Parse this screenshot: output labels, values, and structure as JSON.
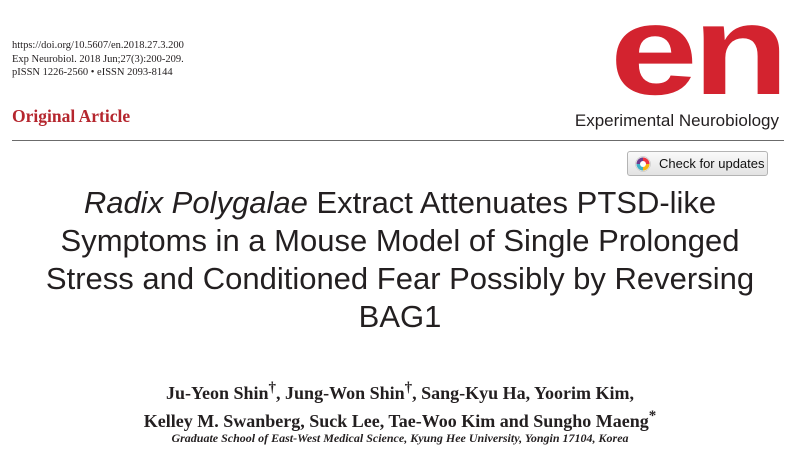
{
  "header": {
    "doi": "https://doi.org/10.5607/en.2018.27.3.200",
    "citation": "Exp Neurobiol. 2018 Jun;27(3):200-209.",
    "issn": "pISSN 1226-2560 • eISSN 2093-8144",
    "article_type": "Original Article",
    "logo_text": "en",
    "journal_name": "Experimental Neurobiology",
    "check_updates_label": "Check for updates",
    "logo_color": "#d3232f",
    "article_type_color": "#b5262e"
  },
  "title": {
    "line1_italic": "Radix Polygalae",
    "line1_rest": " Extract Attenuates PTSD-like",
    "line2": "Symptoms in a Mouse Model of Single Prolonged",
    "line3": "Stress and Conditioned Fear Possibly by Reversing",
    "line4": "BAG1"
  },
  "authors": {
    "a1": "Ju-Yeon Shin",
    "a1_mark": "†",
    "a2": ", Jung-Won Shin",
    "a2_mark": "†",
    "a3": ", Sang-Kyu Ha, Yoorim Kim,",
    "line2": "Kelley M. Swanberg, Suck Lee, Tae-Woo Kim and Sungho Maeng",
    "line2_mark": "*"
  },
  "affiliation": "Graduate School of East-West Medical Science, Kyung Hee University, Yongin 17104, Korea"
}
